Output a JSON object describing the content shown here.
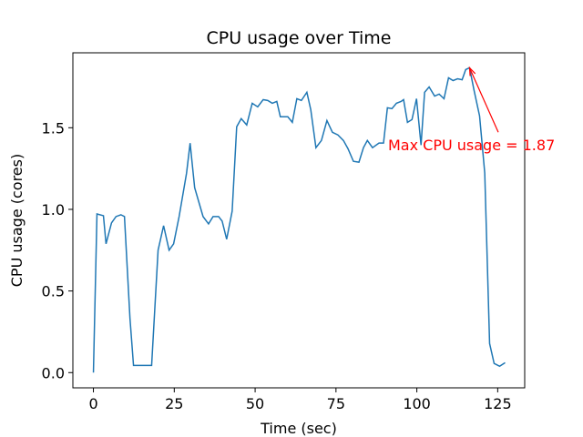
{
  "chart_data": {
    "type": "line",
    "title": "CPU usage over Time",
    "x_label": "Time (sec)",
    "y_label": "CPU usage (cores)",
    "x": [
      0,
      1.1,
      3.1,
      3.9,
      5.6,
      7,
      8.5,
      9.6,
      11.3,
      12.4,
      13.5,
      18,
      20,
      21.7,
      23.4,
      24.8,
      26.5,
      28.8,
      29.9,
      31.3,
      33.9,
      35.6,
      37,
      38.7,
      39.8,
      41.2,
      42.9,
      44.3,
      45.7,
      47.4,
      49.1,
      50.8,
      52.5,
      53.9,
      55.3,
      56.7,
      57.8,
      60.1,
      61.5,
      62.9,
      64.3,
      66,
      67.2,
      68.8,
      70.5,
      72.2,
      73.9,
      75.6,
      77.3,
      78.7,
      80.4,
      82.1,
      83.5,
      84.7,
      86.3,
      88.3,
      89.7,
      90.9,
      92.3,
      93.7,
      95.1,
      95.9,
      97.1,
      98.5,
      99.9,
      101.3,
      102.4,
      103.8,
      105.5,
      106.9,
      108.4,
      109.8,
      111.2,
      112.6,
      114,
      115.1,
      116.3,
      117.7,
      119.4,
      121,
      122.5,
      123.9,
      125.6,
      127.3
    ],
    "values": [
      0.0,
      0.972,
      0.961,
      0.789,
      0.917,
      0.956,
      0.967,
      0.956,
      0.333,
      0.044,
      0.044,
      0.044,
      0.75,
      0.9,
      0.75,
      0.789,
      0.956,
      1.222,
      1.406,
      1.133,
      0.956,
      0.911,
      0.956,
      0.956,
      0.928,
      0.817,
      0.989,
      1.506,
      1.556,
      1.517,
      1.65,
      1.628,
      1.672,
      1.667,
      1.65,
      1.661,
      1.567,
      1.567,
      1.533,
      1.678,
      1.667,
      1.717,
      1.611,
      1.378,
      1.422,
      1.544,
      1.472,
      1.456,
      1.422,
      1.372,
      1.294,
      1.289,
      1.378,
      1.422,
      1.378,
      1.406,
      1.406,
      1.622,
      1.617,
      1.65,
      1.661,
      1.672,
      1.533,
      1.55,
      1.678,
      1.394,
      1.717,
      1.75,
      1.694,
      1.706,
      1.678,
      1.806,
      1.789,
      1.8,
      1.794,
      1.856,
      1.867,
      1.728,
      1.572,
      1.222,
      0.178,
      0.056,
      0.039,
      0.061
    ],
    "color": "#1f77b4",
    "xlim": [
      -6.35,
      133.35
    ],
    "xticks": [
      0,
      25,
      50,
      75,
      100,
      125
    ],
    "ylim": [
      -0.0933,
      1.959
    ],
    "yticks": [
      {
        "value": 0,
        "label": "0.0"
      },
      {
        "value": 0.5,
        "label": "0.5"
      },
      {
        "value": 1,
        "label": "1.0"
      },
      {
        "value": 1.5,
        "label": "1.5"
      }
    ],
    "annotations": [
      {
        "text": "Max CPU usage = 1.87",
        "xy": [
          116.3,
          1.867
        ],
        "xytext": [
          91.1,
          1.361
        ],
        "color": "red"
      }
    ]
  }
}
